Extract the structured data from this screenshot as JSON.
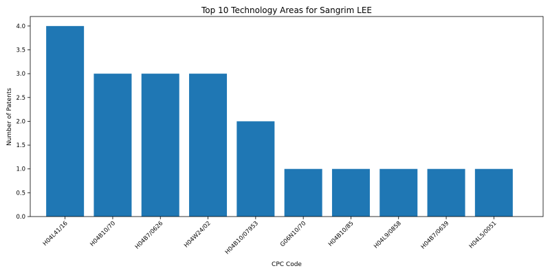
{
  "chart_data": {
    "type": "bar",
    "title": "Top 10 Technology Areas for Sangrim LEE",
    "xlabel": "CPC Code",
    "ylabel": "Number of Patents",
    "categories": [
      "H04L41/16",
      "H04B10/70",
      "H04B7/0626",
      "H04W24/02",
      "H04B10/07953",
      "G06N10/70",
      "H04B10/85",
      "H04L9/0858",
      "H04B7/0639",
      "H04L5/0051"
    ],
    "values": [
      4,
      3,
      3,
      3,
      2,
      1,
      1,
      1,
      1,
      1
    ],
    "ylim": [
      0,
      4.2
    ],
    "yticks": [
      "0.0",
      "0.5",
      "1.0",
      "1.5",
      "2.0",
      "2.5",
      "3.0",
      "3.5",
      "4.0"
    ],
    "bar_color": "#1f77b4",
    "grid": false,
    "legend": "none"
  }
}
